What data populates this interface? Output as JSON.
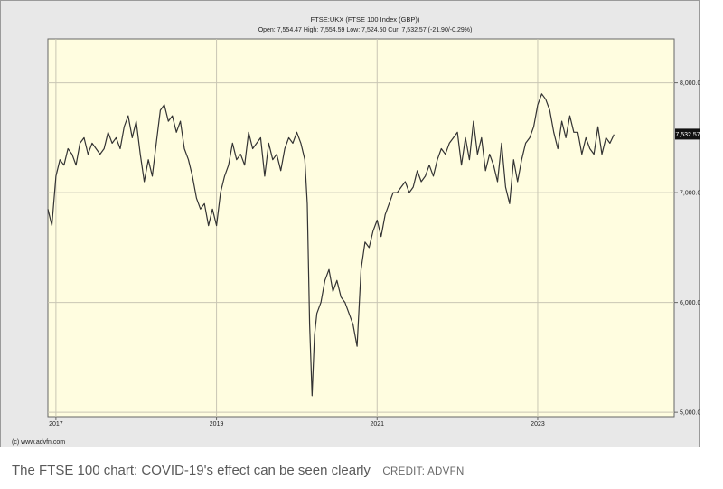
{
  "chart_data": {
    "type": "line",
    "title": "FTSE:UKX (FTSE 100 Index (GBP))",
    "subtitle": "Open: 7,554.47 High: 7,554.59 Low: 7,524.50 Cur: 7,532.57 (-21.90/-0.29%)",
    "xlabel": "",
    "ylabel": "",
    "x_tick_labels": [
      "2017",
      "2019",
      "2021",
      "2023"
    ],
    "x_tick_years": [
      2017,
      2019,
      2021,
      2023
    ],
    "xlim": [
      2016.9,
      2024.7
    ],
    "y_ticks": [
      5000,
      6000,
      7000,
      8000
    ],
    "y_tick_labels": [
      "5,000.00",
      "6,000.00",
      "7,000.00",
      "8,000.00"
    ],
    "ylim": [
      4960,
      8400
    ],
    "current_value": 7532.57,
    "current_label": "7,532.57",
    "grid": true,
    "legend": "none",
    "colors": {
      "plot_background": "#fffde0",
      "frame_background": "#e8e8e8",
      "line": "#333333",
      "grid": "#c9c6b4",
      "current_badge": "#111111"
    },
    "series": [
      {
        "x": [
          2016.9,
          2016.95,
          2017.0,
          2017.05,
          2017.1,
          2017.15,
          2017.2,
          2017.25,
          2017.3,
          2017.35,
          2017.4,
          2017.45,
          2017.5,
          2017.55,
          2017.6,
          2017.65,
          2017.7,
          2017.75,
          2017.8,
          2017.85,
          2017.9,
          2017.95,
          2018.0,
          2018.05,
          2018.1,
          2018.15,
          2018.2,
          2018.25,
          2018.3,
          2018.35,
          2018.4,
          2018.45,
          2018.5,
          2018.55,
          2018.6,
          2018.65,
          2018.7,
          2018.75,
          2018.8,
          2018.85,
          2018.9,
          2018.95,
          2019.0,
          2019.05,
          2019.1,
          2019.15,
          2019.2,
          2019.25,
          2019.3,
          2019.35,
          2019.4,
          2019.45,
          2019.5,
          2019.55,
          2019.6,
          2019.65,
          2019.7,
          2019.75,
          2019.8,
          2019.85,
          2019.9,
          2019.95,
          2020.0,
          2020.05,
          2020.1,
          2020.13,
          2020.16,
          2020.19,
          2020.22,
          2020.25,
          2020.3,
          2020.35,
          2020.4,
          2020.45,
          2020.5,
          2020.55,
          2020.6,
          2020.65,
          2020.7,
          2020.75,
          2020.8,
          2020.85,
          2020.9,
          2020.95,
          2021.0,
          2021.05,
          2021.1,
          2021.15,
          2021.2,
          2021.25,
          2021.3,
          2021.35,
          2021.4,
          2021.45,
          2021.5,
          2021.55,
          2021.6,
          2021.65,
          2021.7,
          2021.75,
          2021.8,
          2021.85,
          2021.9,
          2021.95,
          2022.0,
          2022.05,
          2022.1,
          2022.15,
          2022.2,
          2022.25,
          2022.3,
          2022.35,
          2022.4,
          2022.45,
          2022.5,
          2022.55,
          2022.6,
          2022.65,
          2022.7,
          2022.75,
          2022.8,
          2022.85,
          2022.9,
          2022.95,
          2023.0,
          2023.05,
          2023.1,
          2023.15,
          2023.2,
          2023.25,
          2023.3,
          2023.35,
          2023.4,
          2023.45,
          2023.5,
          2023.55,
          2023.6,
          2023.65,
          2023.7,
          2023.75,
          2023.8,
          2023.85,
          2023.9,
          2023.95
        ],
        "values": [
          6850,
          6700,
          7150,
          7300,
          7250,
          7400,
          7350,
          7250,
          7450,
          7500,
          7350,
          7450,
          7400,
          7350,
          7400,
          7550,
          7450,
          7500,
          7400,
          7600,
          7700,
          7500,
          7650,
          7350,
          7100,
          7300,
          7150,
          7450,
          7750,
          7800,
          7650,
          7700,
          7550,
          7650,
          7400,
          7300,
          7150,
          6950,
          6850,
          6900,
          6700,
          6850,
          6700,
          7000,
          7150,
          7250,
          7450,
          7300,
          7350,
          7250,
          7550,
          7400,
          7450,
          7500,
          7150,
          7450,
          7300,
          7350,
          7200,
          7400,
          7500,
          7450,
          7550,
          7450,
          7300,
          6900,
          5800,
          5150,
          5700,
          5900,
          6000,
          6200,
          6300,
          6100,
          6200,
          6050,
          6000,
          5900,
          5800,
          5600,
          6300,
          6550,
          6500,
          6650,
          6750,
          6600,
          6800,
          6900,
          7000,
          7000,
          7050,
          7100,
          7000,
          7050,
          7200,
          7100,
          7150,
          7250,
          7150,
          7300,
          7400,
          7350,
          7450,
          7500,
          7550,
          7250,
          7500,
          7300,
          7650,
          7350,
          7500,
          7200,
          7350,
          7250,
          7100,
          7450,
          7050,
          6900,
          7300,
          7100,
          7300,
          7450,
          7500,
          7600,
          7800,
          7900,
          7850,
          7750,
          7550,
          7400,
          7650,
          7500,
          7700,
          7550,
          7550,
          7350,
          7500,
          7400,
          7350,
          7600,
          7350,
          7500,
          7450,
          7530
        ]
      }
    ]
  },
  "header": {
    "title": "FTSE:UKX (FTSE 100 Index (GBP))",
    "subtitle": "Open: 7,554.47 High: 7,554.59 Low: 7,524.50 Cur: 7,532.57 (-21.90/-0.29%)"
  },
  "footer": {
    "copyright": "(c) www.advfn.com"
  },
  "caption": {
    "text": "The FTSE 100 chart: COVID-19's effect can be seen clearly",
    "credit": "CREDIT: ADVFN"
  }
}
